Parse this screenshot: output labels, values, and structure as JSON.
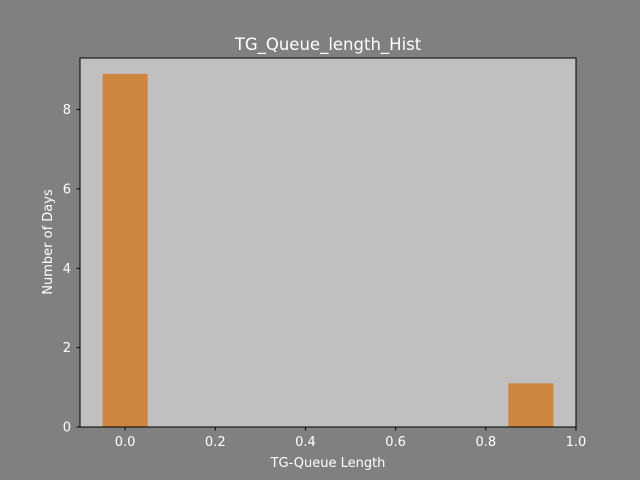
{
  "chart_data": {
    "type": "bar",
    "title": "TG_Queue_length_Hist",
    "xlabel": "TG-Queue Length",
    "ylabel": "Number of Days",
    "xlim": [
      -0.1,
      1.0
    ],
    "ylim": [
      0,
      9.3
    ],
    "xticks": [
      "0.0",
      "0.2",
      "0.4",
      "0.6",
      "0.8",
      "1.0"
    ],
    "yticks": [
      "0",
      "2",
      "4",
      "6",
      "8"
    ],
    "bars": [
      {
        "x_start": -0.05,
        "x_end": 0.05,
        "value": 8.9
      },
      {
        "x_start": 0.85,
        "x_end": 0.95,
        "value": 1.1
      }
    ],
    "grid": false,
    "legend": "none"
  },
  "colors": {
    "figure_background": "#808080",
    "plot_background": "#c0c0c0",
    "bar": "#cd853f",
    "text": "#ffffff",
    "axis": "#000000"
  }
}
